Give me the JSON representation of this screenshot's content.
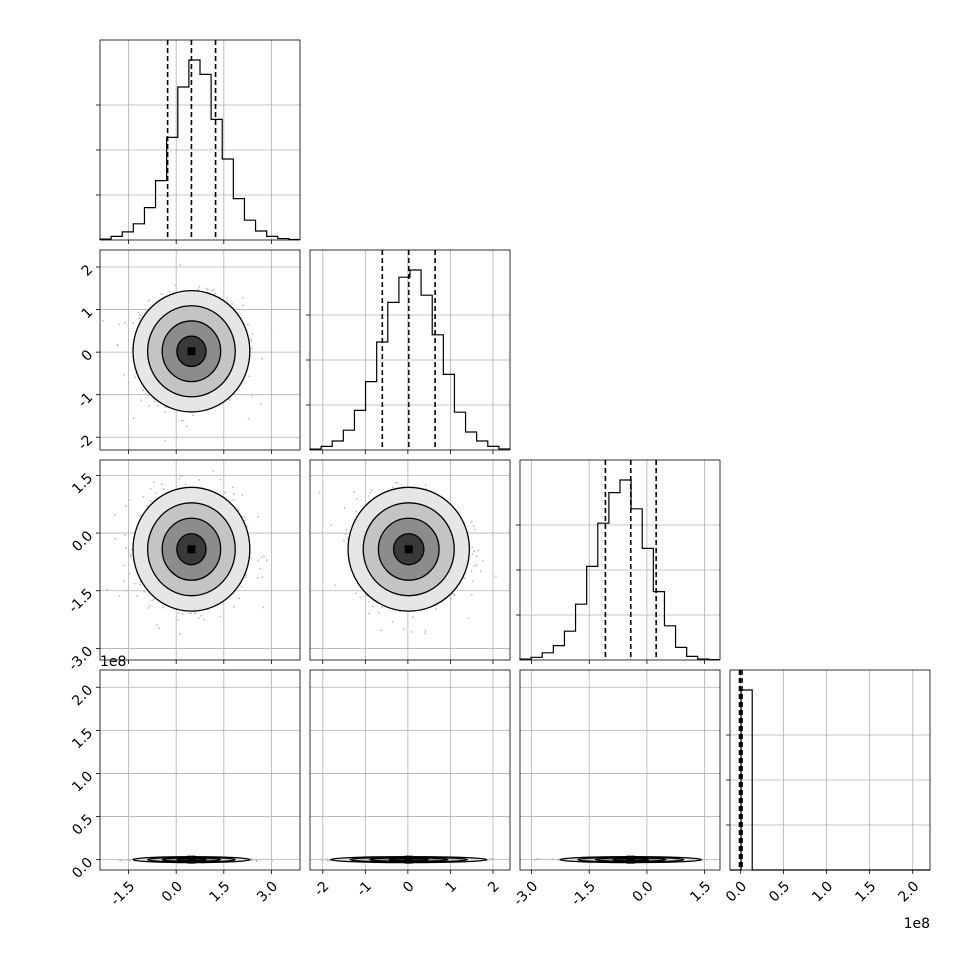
{
  "chart_data": {
    "type": "corner",
    "variables": 4,
    "axis_ticks": [
      [
        "-1.5",
        "0.0",
        "1.5",
        "3.0"
      ],
      [
        "-2",
        "-1",
        "0",
        "1",
        "2"
      ],
      [
        "-3.0",
        "-1.5",
        "0.0",
        "1.5"
      ],
      [
        "0.0",
        "0.5",
        "1.0",
        "1.5",
        "2.0"
      ]
    ],
    "axis_ranges": [
      [
        -2.4,
        3.9
      ],
      [
        -2.3,
        2.4
      ],
      [
        -3.3,
        1.9
      ],
      [
        -0.12,
        2.2
      ]
    ],
    "y_tick_values": [
      [],
      [
        -2,
        -1,
        0,
        1,
        2
      ],
      [
        -3.0,
        -1.5,
        0.0,
        1.5
      ],
      [
        0.0,
        0.5,
        1.0,
        1.5,
        2.0
      ]
    ],
    "x_tick_values": [
      [
        -1.5,
        0.0,
        1.5,
        3.0
      ],
      [
        -2,
        -1,
        0,
        1,
        2
      ],
      [
        -3.0,
        -1.5,
        0.0,
        1.5
      ],
      [
        0.0,
        0.5,
        1.0,
        1.5,
        2.0
      ]
    ],
    "offset_text": "1e8",
    "quantile_lines": [
      [
        -0.27,
        0.48,
        1.24
      ],
      [
        -0.6,
        0.02,
        0.64
      ],
      [
        -1.08,
        -0.42,
        0.24
      ],
      [
        -0.01,
        0.0,
        0.02
      ]
    ],
    "histograms": [
      {
        "edges_start": -2.4,
        "edges_end": 3.9,
        "counts": [
          0.005,
          0.02,
          0.045,
          0.09,
          0.18,
          0.33,
          0.57,
          0.85,
          1.0,
          0.92,
          0.67,
          0.45,
          0.23,
          0.11,
          0.05,
          0.02,
          0.008,
          0.003
        ]
      },
      {
        "edges_start": -2.3,
        "edges_end": 2.4,
        "counts": [
          0.005,
          0.02,
          0.05,
          0.11,
          0.22,
          0.38,
          0.6,
          0.82,
          0.96,
          1.0,
          0.86,
          0.64,
          0.42,
          0.21,
          0.1,
          0.05,
          0.02,
          0.006
        ]
      },
      {
        "edges_start": -3.3,
        "edges_end": 1.9,
        "counts": [
          0.005,
          0.015,
          0.04,
          0.08,
          0.16,
          0.31,
          0.52,
          0.76,
          0.93,
          1.0,
          0.84,
          0.62,
          0.38,
          0.19,
          0.07,
          0.02,
          0.005,
          0.002
        ]
      },
      {
        "edges_start": -0.12,
        "edges_end": 2.2,
        "counts": [
          0,
          1.0,
          0,
          0,
          0,
          0,
          0,
          0,
          0,
          0,
          0,
          0,
          0,
          0,
          0,
          0,
          0,
          0
        ]
      }
    ],
    "scatter_centers": [
      [
        0.48,
        0.02,
        -0.42,
        0.0
      ]
    ],
    "grid": true,
    "legend": "none"
  }
}
